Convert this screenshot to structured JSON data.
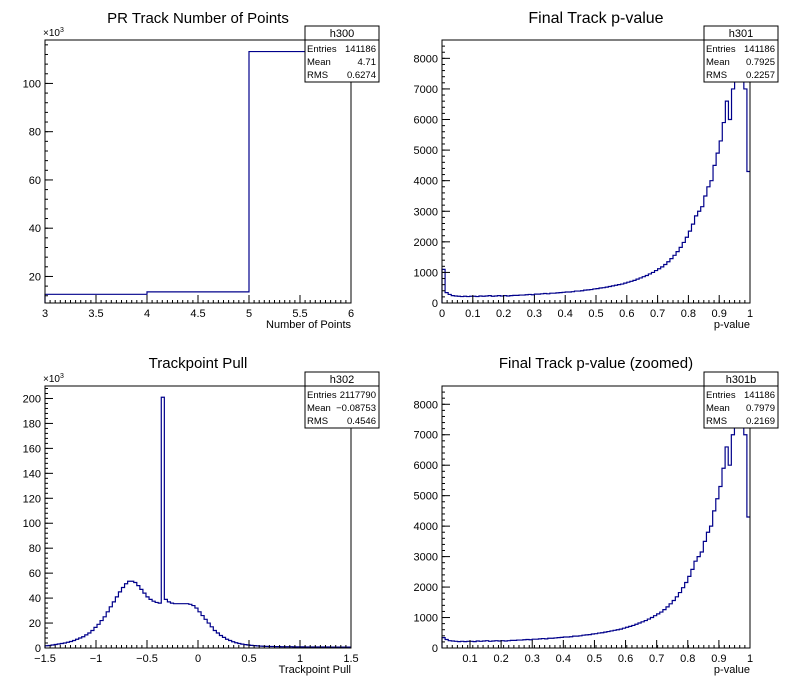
{
  "canvas": {
    "background": "#ffffff",
    "line_color": "#00008b"
  },
  "chart_data": [
    {
      "type": "histogram",
      "title": "PR Track Number of Points",
      "xlabel": "Number of Points",
      "ylabel": "",
      "exponent_label": "×10",
      "exponent": "3",
      "xlim": [
        3,
        6
      ],
      "ylim": [
        9,
        118
      ],
      "y_scale": 1000,
      "grid": false,
      "x_ticks": [
        3,
        3.5,
        4,
        4.5,
        5,
        5.5,
        6
      ],
      "x_tick_labels": [
        "3",
        "3.5",
        "4",
        "4.5",
        "5",
        "5.5",
        "6"
      ],
      "y_ticks": [
        20,
        40,
        60,
        80,
        100
      ],
      "y_tick_labels": [
        "20",
        "40",
        "60",
        "80",
        "100"
      ],
      "bin_edges": [
        3,
        4,
        5,
        6
      ],
      "values": [
        12.6,
        13.6,
        113.2
      ],
      "stats": {
        "name": "h300",
        "rows": [
          [
            "Entries",
            "141186"
          ],
          [
            "Mean",
            "4.71"
          ],
          [
            "RMS",
            "0.6274"
          ]
        ]
      }
    },
    {
      "type": "histogram",
      "title": "Final Track p-value",
      "xlabel": "p-value",
      "ylabel": "",
      "xlim": [
        0,
        1
      ],
      "ylim": [
        0,
        8600
      ],
      "grid": false,
      "x_ticks": [
        0,
        0.1,
        0.2,
        0.3,
        0.4,
        0.5,
        0.6,
        0.7,
        0.8,
        0.9,
        1
      ],
      "x_tick_labels": [
        "0",
        "0.1",
        "0.2",
        "0.3",
        "0.4",
        "0.5",
        "0.6",
        "0.7",
        "0.8",
        "0.9",
        "1"
      ],
      "y_ticks": [
        0,
        1000,
        2000,
        3000,
        4000,
        5000,
        6000,
        7000,
        8000
      ],
      "y_tick_labels": [
        "0",
        "1000",
        "2000",
        "3000",
        "4000",
        "5000",
        "6000",
        "7000",
        "8000"
      ],
      "bin_start": 0,
      "bin_width": 0.01,
      "values": [
        1100,
        340,
        280,
        240,
        230,
        220,
        210,
        220,
        210,
        220,
        220,
        210,
        230,
        220,
        230,
        240,
        220,
        230,
        240,
        230,
        240,
        230,
        240,
        250,
        250,
        260,
        260,
        270,
        280,
        270,
        290,
        290,
        300,
        310,
        300,
        320,
        320,
        330,
        340,
        350,
        360,
        360,
        370,
        390,
        390,
        400,
        420,
        430,
        440,
        460,
        470,
        490,
        500,
        520,
        540,
        560,
        580,
        600,
        620,
        650,
        680,
        710,
        740,
        780,
        820,
        860,
        900,
        950,
        1000,
        1060,
        1120,
        1180,
        1260,
        1350,
        1450,
        1560,
        1680,
        1820,
        1980,
        2150,
        2350,
        2580,
        2850,
        3000,
        3150,
        3500,
        3800,
        4000,
        4500,
        4900,
        5300,
        5900,
        6600,
        6000,
        7000,
        7800,
        8600,
        8600,
        7000,
        4300
      ],
      "stats": {
        "name": "h301",
        "rows": [
          [
            "Entries",
            "141186"
          ],
          [
            "Mean",
            "0.7925"
          ],
          [
            "RMS",
            "0.2257"
          ]
        ]
      }
    },
    {
      "type": "histogram",
      "title": "Trackpoint Pull",
      "xlabel": "Trackpoint Pull",
      "ylabel": "",
      "exponent_label": "×10",
      "exponent": "3",
      "xlim": [
        -1.5,
        1.5
      ],
      "ylim": [
        0,
        210
      ],
      "y_scale": 1000,
      "grid": false,
      "x_ticks": [
        -1.5,
        -1,
        -0.5,
        0,
        0.5,
        1,
        1.5
      ],
      "x_tick_labels": [
        "−1.5",
        "−1",
        "−0.5",
        "0",
        "0.5",
        "1",
        "1.5"
      ],
      "y_ticks": [
        0,
        20,
        40,
        60,
        80,
        100,
        120,
        140,
        160,
        180,
        200
      ],
      "y_tick_labels": [
        "0",
        "20",
        "40",
        "60",
        "80",
        "100",
        "120",
        "140",
        "160",
        "180",
        "200"
      ],
      "bin_start": -1.5,
      "bin_width": 0.03,
      "values": [
        1.8,
        2,
        2.4,
        2.8,
        3.2,
        3.6,
        4,
        4.6,
        5.2,
        6,
        7,
        8,
        9,
        10.5,
        12,
        14,
        16.5,
        19,
        22,
        25,
        29,
        33,
        37,
        41,
        45,
        48.5,
        51.5,
        53.5,
        53.5,
        52.5,
        50,
        47,
        44,
        41,
        39,
        37.5,
        36.5,
        36,
        201,
        39,
        37,
        36,
        35.5,
        35.5,
        35.5,
        35.5,
        35.5,
        35,
        34,
        32,
        29,
        26,
        23,
        20,
        17,
        14,
        12,
        10,
        8.5,
        7,
        6,
        5,
        4.2,
        3.6,
        3.1,
        2.7,
        2.4,
        2.1,
        1.9,
        1.7,
        1.5,
        1.4,
        1.3,
        1.2,
        1.2,
        1.1,
        1.1,
        1,
        1,
        1,
        1,
        0.9,
        0.9,
        0.9,
        0.9,
        0.8,
        0.8,
        0.8,
        0.8,
        0.8,
        0.8,
        0.8,
        0.8,
        0.7,
        0.7,
        0.7,
        0.7,
        0.7,
        0.7,
        0.7
      ],
      "stats": {
        "name": "h302",
        "rows": [
          [
            "Entries",
            "2117790"
          ],
          [
            "Mean",
            "−0.08753"
          ],
          [
            "RMS",
            "0.4546"
          ]
        ]
      }
    },
    {
      "type": "histogram",
      "title": "Final Track p-value (zoomed)",
      "xlabel": "p-value",
      "ylabel": "",
      "xlim": [
        0.01,
        1
      ],
      "ylim": [
        0,
        8600
      ],
      "grid": false,
      "x_ticks": [
        0.1,
        0.2,
        0.3,
        0.4,
        0.5,
        0.6,
        0.7,
        0.8,
        0.9,
        1
      ],
      "x_tick_labels": [
        "0.1",
        "0.2",
        "0.3",
        "0.4",
        "0.5",
        "0.6",
        "0.7",
        "0.8",
        "0.9",
        "1"
      ],
      "y_ticks": [
        0,
        1000,
        2000,
        3000,
        4000,
        5000,
        6000,
        7000,
        8000
      ],
      "y_tick_labels": [
        "0",
        "1000",
        "2000",
        "3000",
        "4000",
        "5000",
        "6000",
        "7000",
        "8000"
      ],
      "bin_start": 0.01,
      "bin_width": 0.01,
      "values": [
        340,
        280,
        240,
        230,
        220,
        210,
        220,
        210,
        220,
        220,
        210,
        230,
        220,
        230,
        240,
        220,
        230,
        240,
        230,
        240,
        230,
        240,
        250,
        250,
        260,
        260,
        270,
        280,
        270,
        290,
        290,
        300,
        310,
        300,
        320,
        320,
        330,
        340,
        350,
        360,
        360,
        370,
        390,
        390,
        400,
        420,
        430,
        440,
        460,
        470,
        490,
        500,
        520,
        540,
        560,
        580,
        600,
        620,
        650,
        680,
        710,
        740,
        780,
        820,
        860,
        900,
        950,
        1000,
        1060,
        1120,
        1180,
        1260,
        1350,
        1450,
        1560,
        1680,
        1820,
        1980,
        2150,
        2350,
        2580,
        2850,
        3000,
        3150,
        3500,
        3800,
        4000,
        4500,
        4900,
        5300,
        5900,
        6600,
        6000,
        7000,
        7800,
        8600,
        8600,
        7000,
        4300
      ],
      "stats": {
        "name": "h301b",
        "rows": [
          [
            "Entries",
            "141186"
          ],
          [
            "Mean",
            "0.7979"
          ],
          [
            "RMS",
            "0.2169"
          ]
        ]
      }
    }
  ]
}
